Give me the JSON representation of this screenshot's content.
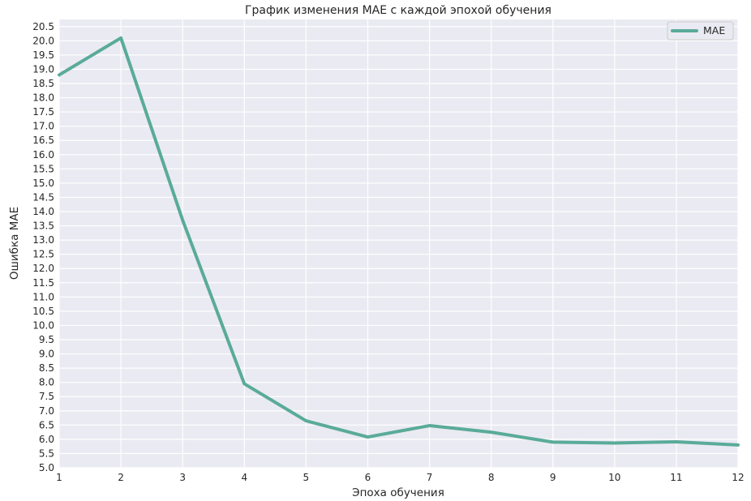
{
  "chart_data": {
    "type": "line",
    "title": "График изменения MAE с каждой эпохой обучения",
    "xlabel": "Эпоха обучения",
    "ylabel": "Ошибка MAE",
    "x": [
      1,
      2,
      3,
      4,
      5,
      6,
      7,
      8,
      9,
      10,
      11,
      12
    ],
    "series": [
      {
        "name": "MAE",
        "color": "#5aab99",
        "values": [
          18.8,
          20.1,
          13.7,
          7.95,
          6.65,
          6.08,
          6.48,
          6.25,
          5.9,
          5.87,
          5.91,
          5.8
        ]
      }
    ],
    "xlim": [
      1,
      12
    ],
    "ylim": [
      5.0,
      20.75
    ],
    "xticks": [
      "1",
      "2",
      "3",
      "4",
      "5",
      "6",
      "7",
      "8",
      "9",
      "10",
      "11",
      "12"
    ],
    "yticks": [
      "5.0",
      "5.5",
      "6.0",
      "6.5",
      "7.0",
      "7.5",
      "8.0",
      "8.5",
      "9.0",
      "9.5",
      "10.0",
      "10.5",
      "11.0",
      "11.5",
      "12.0",
      "12.5",
      "13.0",
      "13.5",
      "14.0",
      "14.5",
      "15.0",
      "15.5",
      "16.0",
      "16.5",
      "17.0",
      "17.5",
      "18.0",
      "18.5",
      "19.0",
      "19.5",
      "20.0",
      "20.5"
    ],
    "grid": true,
    "legend_position": "top-right",
    "background_color": "#eaeaf2",
    "grid_color": "#ffffff"
  }
}
